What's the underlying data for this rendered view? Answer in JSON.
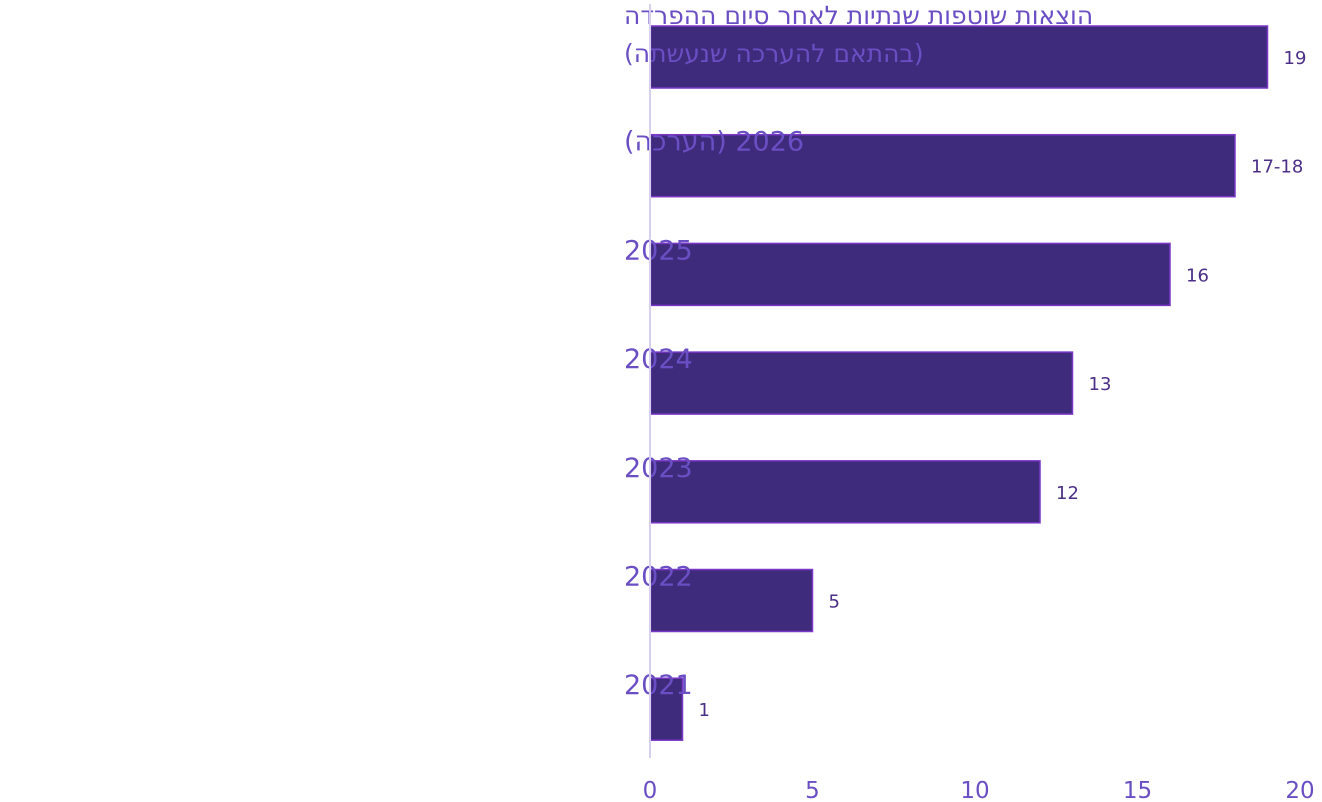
{
  "chart_data": {
    "type": "bar",
    "orientation": "horizontal",
    "categories": [
      "הוצאות שוטפות שנתיות לאחר סיום ההפרדה|(בהתאם להערכה שנעשתה)",
      "2026 (הערכה)",
      "2025",
      "2024",
      "2023",
      "2022",
      "2021"
    ],
    "values": [
      19,
      18,
      16,
      13,
      12,
      5,
      1
    ],
    "value_labels": [
      "19",
      "17-18",
      "16",
      "13",
      "12",
      "5",
      "1"
    ],
    "xlim": [
      0,
      20
    ],
    "x_ticks": [
      0,
      5,
      10,
      15,
      20
    ],
    "title": "",
    "xlabel": "",
    "ylabel": "",
    "grid": false,
    "colors": {
      "bar_fill": "#3f2b7b",
      "bar_stroke": "#7a37c8",
      "label_text": "#6a4fc4",
      "value_text": "#4a2f86",
      "axis_line": "#d6d0ee"
    }
  }
}
